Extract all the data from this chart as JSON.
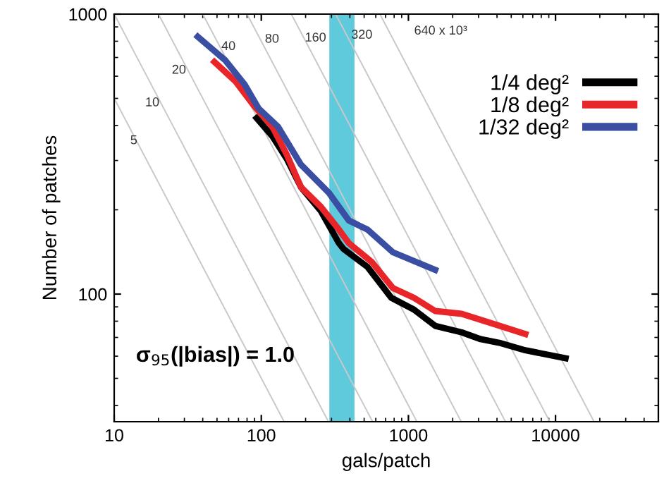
{
  "chart_data": {
    "type": "line",
    "xlabel": "gals/patch",
    "ylabel": "Number of patches",
    "log": "xy",
    "xlim": [
      10,
      50000
    ],
    "ylim": [
      35,
      1000
    ],
    "xticks": [
      10,
      100,
      1000,
      10000
    ],
    "yticks": [
      100,
      1000
    ],
    "grid": false,
    "legend": "top right",
    "line_style": "solid",
    "marker": "none",
    "bands": [
      {
        "axis": "x",
        "from": 290,
        "to": 430,
        "color": "#5fcadb"
      }
    ],
    "series": [
      {
        "color": "#c8c8c8",
        "x": [
          10,
          143
        ],
        "values": [
          500,
          35
        ]
      },
      {
        "color": "#c8c8c8",
        "x": [
          10,
          286
        ],
        "values": [
          1000,
          35
        ]
      },
      {
        "color": "#c8c8c8",
        "x": [
          20,
          571
        ],
        "values": [
          1000,
          35
        ]
      },
      {
        "color": "#c8c8c8",
        "x": [
          40,
          1143
        ],
        "values": [
          1000,
          35
        ]
      },
      {
        "color": "#c8c8c8",
        "x": [
          80,
          2286
        ],
        "values": [
          1000,
          35
        ]
      },
      {
        "color": "#c8c8c8",
        "x": [
          160,
          4571
        ],
        "values": [
          1000,
          35
        ]
      },
      {
        "color": "#c8c8c8",
        "x": [
          320,
          9143
        ],
        "values": [
          1000,
          35
        ]
      },
      {
        "color": "#c8c8c8",
        "x": [
          640,
          18286
        ],
        "values": [
          1000,
          35
        ]
      },
      {
        "name": "1/4 deg²",
        "color": "#000000",
        "x": [
          93,
          119,
          149,
          186,
          254,
          337,
          362,
          527,
          765,
          1090,
          1520,
          2300,
          3100,
          4140,
          6230,
          11700
        ],
        "values": [
          425,
          366,
          304,
          241,
          198,
          152,
          145,
          125,
          97,
          88,
          77,
          73,
          69,
          67,
          63,
          59
        ]
      },
      {
        "name": "1/8 deg²",
        "color": "#e8262a",
        "x": [
          48,
          67,
          89,
          119,
          149,
          186,
          254,
          337,
          394,
          565,
          785,
          1090,
          1520,
          2300,
          3850,
          6230
        ],
        "values": [
          675,
          574,
          471,
          396,
          315,
          241,
          205,
          170,
          152,
          130,
          105,
          97,
          87,
          85,
          78,
          72
        ]
      },
      {
        "name": "1/32 deg²",
        "color": "#3a4fa3",
        "x": [
          37,
          57,
          77,
          96,
          130,
          186,
          288,
          394,
          527,
          785,
          1520
        ],
        "values": [
          830,
          683,
          561,
          460,
          396,
          290,
          230,
          183,
          170,
          141,
          122
        ]
      }
    ],
    "annotations": [
      "5",
      "10",
      "20",
      "40",
      "80",
      "160",
      "320",
      "640 x 10³",
      "σ$_{95}$(|bias|) = 1.0"
    ]
  }
}
